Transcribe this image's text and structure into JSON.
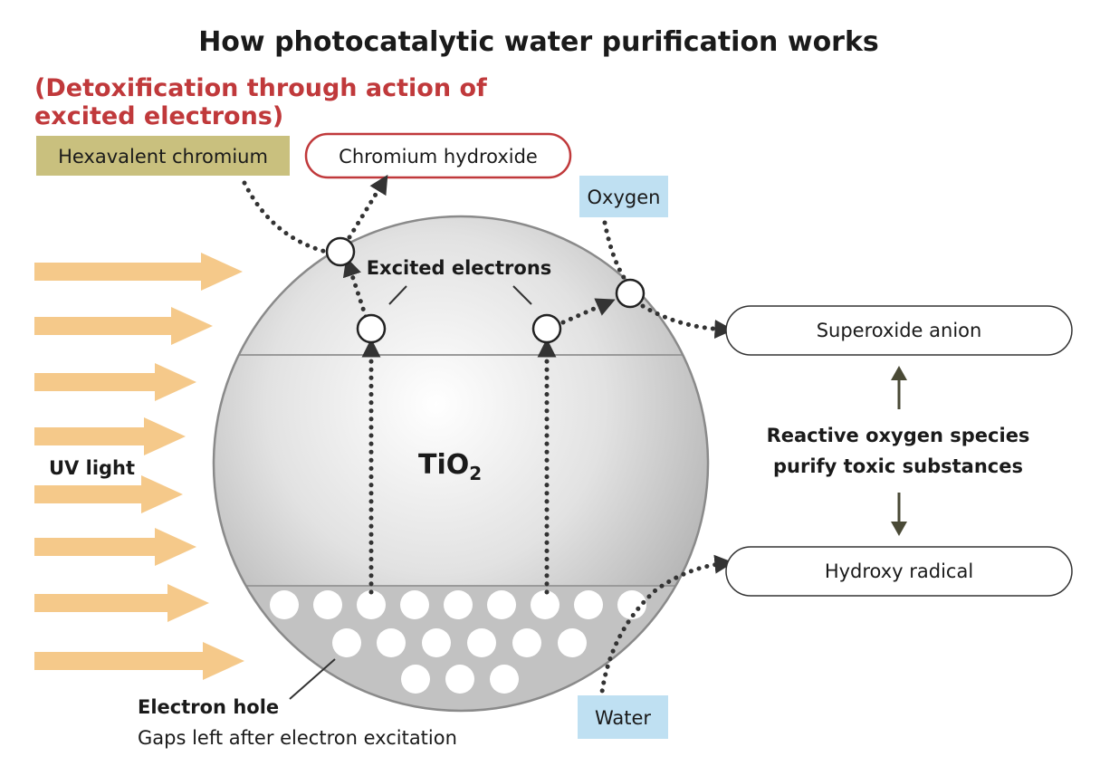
{
  "title": "How photocatalytic water purification works",
  "subtitle_lines": [
    "(Detoxification through action of",
    "excited electrons)"
  ],
  "labels": {
    "hexavalent_chromium": "Hexavalent chromium",
    "chromium_hydroxide": "Chromium hydroxide",
    "oxygen": "Oxygen",
    "excited_electrons": "Excited electrons",
    "superoxide_anion": "Superoxide anion",
    "reactive_lines": [
      "Reactive oxygen species",
      "purify toxic substances"
    ],
    "hydroxy_radical": "Hydroxy radical",
    "uv_light": "UV light",
    "tio2_main": "TiO",
    "tio2_sub": "2",
    "electron_hole": "Electron hole",
    "electron_hole_desc": "Gaps left after electron excitation",
    "water": "Water"
  },
  "colors": {
    "title": "#1a1a1a",
    "subtitle": "#c0393b",
    "hexavalent_box": "#c9c07e",
    "chromium_box_border": "#c0393b",
    "blue_box": "#bfe0f2",
    "uv_arrow": "#f5c98a",
    "green_arrow": "#4a4a36"
  }
}
